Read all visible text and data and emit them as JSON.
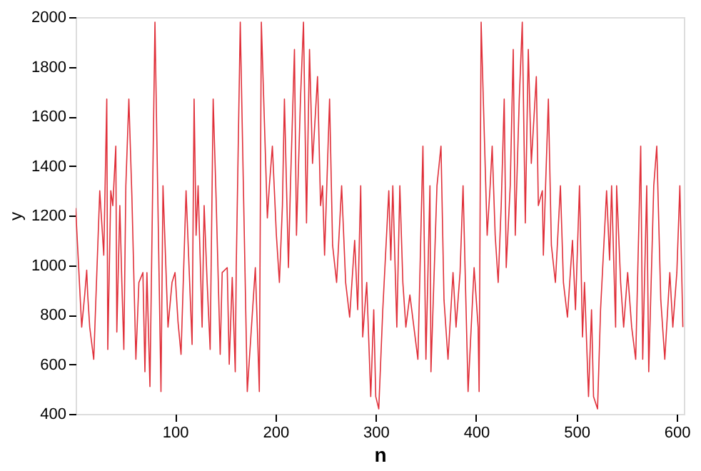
{
  "chart_data": {
    "type": "line",
    "xlabel": "n",
    "ylabel": "y",
    "xlim": [
      1,
      607
    ],
    "ylim": [
      400,
      2000
    ],
    "xticks": [
      100,
      200,
      300,
      400,
      500,
      600
    ],
    "yticks": [
      400,
      600,
      800,
      1000,
      1200,
      1400,
      1600,
      1800,
      2000
    ],
    "grid": false,
    "marker": "none",
    "line_style": "solid",
    "series": [
      {
        "color": "#e0303a",
        "x": [
          1,
          7,
          10,
          12,
          13,
          15,
          19,
          25,
          29,
          32,
          33,
          36,
          38,
          41,
          42,
          45,
          47,
          49,
          51,
          54,
          57,
          61,
          64,
          68,
          70,
          72,
          75,
          80,
          86,
          88,
          93,
          97,
          100,
          103,
          106,
          111,
          117,
          119,
          121,
          123,
          127,
          129,
          132,
          135,
          138,
          141,
          145,
          147,
          152,
          154,
          157,
          160,
          161,
          165,
          172,
          180,
          182,
          184,
          186,
          192,
          194,
          197,
          201,
          204,
          207,
          209,
          213,
          215,
          219,
          221,
          225,
          228,
          231,
          234,
          237,
          242,
          245,
          247,
          249,
          254,
          257,
          261,
          266,
          270,
          274,
          279,
          282,
          285,
          287,
          291,
          295,
          298,
          300,
          303,
          307,
          313,
          315,
          317,
          321,
          324,
          327,
          330,
          334,
          338,
          342,
          347,
          350,
          354,
          355,
          361,
          365,
          368,
          372,
          377,
          380,
          384,
          387,
          392,
          398,
          402,
          403,
          405,
          411,
          414,
          416,
          419,
          422,
          425,
          428,
          430,
          434,
          437,
          439,
          443,
          446,
          449,
          452,
          455,
          460,
          462,
          466,
          467,
          472,
          475,
          479,
          484,
          487,
          491,
          496,
          499,
          503,
          506,
          508,
          512,
          515,
          517,
          521,
          524,
          530,
          533,
          535,
          539,
          540,
          544,
          547,
          551,
          555,
          559,
          564,
          566,
          570,
          572,
          577,
          580,
          584,
          588,
          593,
          596,
          600,
          603,
          606
        ],
        "values": [
          1230,
          750,
          880,
          980,
          880,
          750,
          620,
          1300,
          1040,
          1670,
          660,
          1300,
          1240,
          1480,
          730,
          1240,
          930,
          660,
          1320,
          1670,
          1280,
          620,
          930,
          970,
          570,
          970,
          510,
          1980,
          490,
          1320,
          750,
          930,
          970,
          770,
          640,
          1300,
          680,
          1670,
          1120,
          1320,
          750,
          1240,
          930,
          660,
          1670,
          1260,
          640,
          970,
          990,
          600,
          950,
          570,
          990,
          1980,
          490,
          990,
          750,
          490,
          1980,
          1190,
          1320,
          1480,
          1120,
          930,
          1240,
          1670,
          990,
          1320,
          1870,
          1120,
          1670,
          1980,
          1170,
          1870,
          1410,
          1760,
          1240,
          1320,
          1040,
          1670,
          1080,
          930,
          1320,
          930,
          790,
          1100,
          820,
          1320,
          710,
          930,
          470,
          820,
          470,
          420,
          820,
          1300,
          1020,
          1320,
          750,
          1320,
          930,
          750,
          880,
          750,
          620,
          1480,
          620,
          1320,
          570,
          1320,
          1480,
          860,
          620,
          970,
          750,
          970,
          1320,
          490,
          990,
          750,
          490,
          1980,
          1120,
          1320,
          1480,
          1120,
          930,
          1240,
          1670,
          990,
          1320,
          1870,
          1120,
          1670,
          1980,
          1170,
          1870,
          1410,
          1760,
          1240,
          1300,
          1040,
          1670,
          1080,
          930,
          1320,
          930,
          790,
          1100,
          820,
          1320,
          710,
          930,
          470,
          820,
          470,
          420,
          820,
          1300,
          1020,
          1320,
          750,
          1320,
          930,
          750,
          970,
          750,
          620,
          1480,
          620,
          1320,
          570,
          1320,
          1480,
          860,
          620,
          970,
          750,
          970,
          1320,
          750
        ]
      }
    ]
  }
}
